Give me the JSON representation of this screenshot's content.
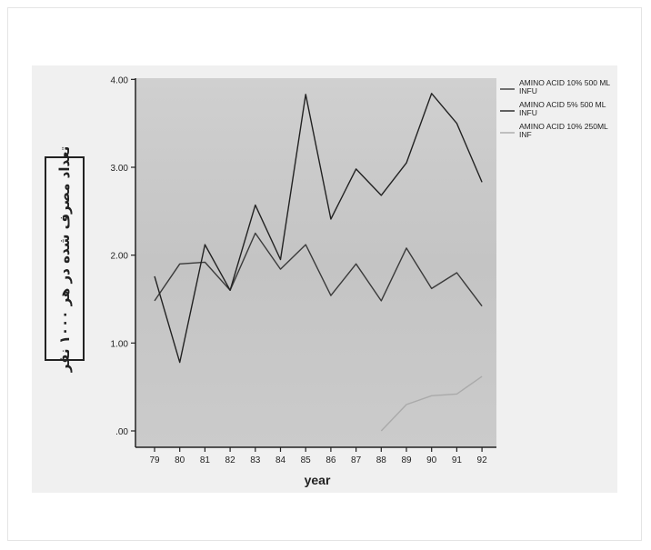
{
  "chart_data": {
    "type": "line",
    "title": "",
    "xlabel": "year",
    "ylabel": "تعداد مصرف شده در هر ۱۰۰۰ نفر",
    "x": [
      "79",
      "80",
      "81",
      "82",
      "83",
      "84",
      "85",
      "86",
      "87",
      "88",
      "89",
      "90",
      "91",
      "92"
    ],
    "y_ticks": [
      ".00",
      "1.00",
      "2.00",
      "3.00",
      "4.00"
    ],
    "ylim": [
      0,
      4.2
    ],
    "grid": false,
    "legend_position": "right",
    "series": [
      {
        "name": "AMINO ACID 10% 500 ML INFU",
        "color": "#3a3a3a",
        "values": [
          1.48,
          1.9,
          1.92,
          1.6,
          2.25,
          1.84,
          2.12,
          1.54,
          1.9,
          1.48,
          2.08,
          1.62,
          1.8,
          1.42
        ]
      },
      {
        "name": "AMINO ACID 5% 500 ML INFU",
        "color": "#222222",
        "values": [
          1.76,
          0.78,
          2.12,
          1.6,
          2.57,
          1.95,
          3.83,
          2.41,
          2.98,
          2.68,
          3.05,
          3.84,
          3.5,
          2.83
        ]
      },
      {
        "name": "AMINO ACID 10% 250ML INF",
        "color": "#aaaaaa",
        "values": [
          null,
          null,
          null,
          null,
          null,
          null,
          null,
          null,
          null,
          0.0,
          0.3,
          0.4,
          0.42,
          0.62
        ]
      }
    ]
  }
}
